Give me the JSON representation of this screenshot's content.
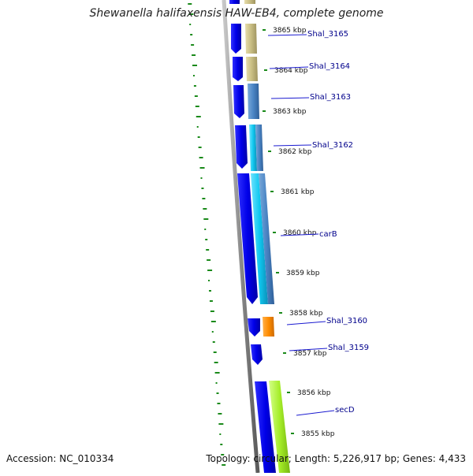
{
  "title": "Shewanella halifaxensis HAW-EB4, complete genome",
  "accession": "Accession: NC_010334",
  "topology": "Topology: circular; Length: 5,226,917 bp; Genes: 4,433",
  "ticks": [
    "3865 kbp",
    "3864 kbp",
    "3863 kbp",
    "3862 kbp",
    "3861 kbp",
    "3860 kbp",
    "3859 kbp",
    "3858 kbp",
    "3857 kbp",
    "3856 kbp",
    "3855 kbp"
  ],
  "genes": [
    "Shal_3165",
    "Shal_3164",
    "Shal_3163",
    "Shal_3162",
    "carB",
    "Shal_3160",
    "Shal_3159",
    "secD"
  ],
  "colors": {
    "backbone": "#8a8a8a",
    "cds": "#0000e8",
    "gc_track": "#1a8a1a",
    "label_line": "#1a1ad0",
    "label_text": "#00008b",
    "khaki": "#c8bd82",
    "steelblue": "#4a84c4",
    "cyan": "#10c8f0",
    "orange": "#ff8c00",
    "lime": "#a6ee2a"
  }
}
